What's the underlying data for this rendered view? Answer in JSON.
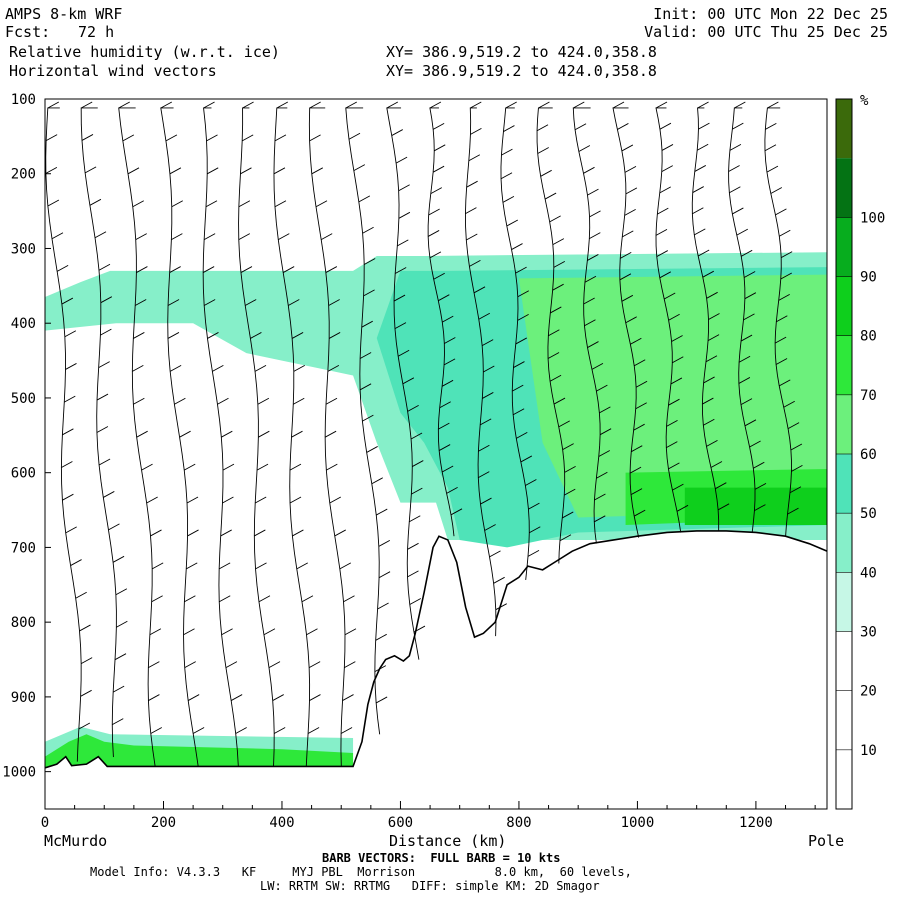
{
  "header": {
    "model": "AMPS 8-km WRF",
    "fcst_label": "Fcst:",
    "fcst_value": "72 h",
    "field1": "Relative humidity (w.r.t. ice)",
    "field2": "Horizontal wind vectors",
    "init": "Init: 00 UTC Mon 22 Dec 25",
    "valid": "Valid: 00 UTC Thu 25 Dec 25",
    "xy1": "XY= 386.9,519.2 to 424.0,358.8",
    "xy2": "XY= 386.9,519.2 to 424.0,358.8"
  },
  "footer": {
    "left_label": "McMurdo",
    "right_label": "Pole",
    "barb_note": "BARB VECTORS:  FULL BARB = 10 kts",
    "model_info": "Model Info: V4.3.3   KF     MYJ PBL  Morrison           8.0 km,  60 levels,",
    "model_info2": "LW: RRTM SW: RRTMG   DIFF: simple KM: 2D Smagor"
  },
  "chart_data": {
    "type": "heatmap",
    "title": "Relative humidity (w.r.t. ice)",
    "xlabel": "Distance (km)",
    "ylabel": "",
    "xlim": [
      0,
      1320
    ],
    "ylim": [
      1050,
      100
    ],
    "x_ticks": [
      0,
      200,
      400,
      600,
      800,
      1000,
      1200
    ],
    "y_ticks": [
      100,
      200,
      300,
      400,
      500,
      600,
      700,
      800,
      900,
      1000
    ],
    "colorbar": {
      "unit": "%",
      "levels": [
        10,
        20,
        30,
        40,
        50,
        60,
        70,
        80,
        90,
        100
      ],
      "colors": [
        "#ffffff",
        "#ffffff",
        "#ffffff",
        "#c6f7e6",
        "#86efc9",
        "#4fe3b8",
        "#6cf07c",
        "#2ee83a",
        "#0ecf1c",
        "#07ad1e",
        "#047314",
        "#3b6a0b"
      ]
    },
    "terrain": [
      [
        0,
        995
      ],
      [
        20,
        990
      ],
      [
        35,
        980
      ],
      [
        45,
        992
      ],
      [
        70,
        990
      ],
      [
        90,
        980
      ],
      [
        105,
        993
      ],
      [
        150,
        993
      ],
      [
        300,
        993
      ],
      [
        450,
        993
      ],
      [
        520,
        993
      ],
      [
        535,
        960
      ],
      [
        545,
        910
      ],
      [
        555,
        880
      ],
      [
        565,
        862
      ],
      [
        575,
        850
      ],
      [
        590,
        845
      ],
      [
        605,
        852
      ],
      [
        615,
        845
      ],
      [
        625,
        815
      ],
      [
        640,
        760
      ],
      [
        655,
        700
      ],
      [
        665,
        685
      ],
      [
        680,
        690
      ],
      [
        695,
        720
      ],
      [
        710,
        780
      ],
      [
        725,
        820
      ],
      [
        740,
        815
      ],
      [
        760,
        800
      ],
      [
        780,
        750
      ],
      [
        800,
        740
      ],
      [
        815,
        725
      ],
      [
        840,
        730
      ],
      [
        860,
        720
      ],
      [
        890,
        705
      ],
      [
        920,
        695
      ],
      [
        960,
        690
      ],
      [
        1000,
        685
      ],
      [
        1050,
        680
      ],
      [
        1100,
        678
      ],
      [
        1150,
        678
      ],
      [
        1200,
        680
      ],
      [
        1250,
        685
      ],
      [
        1290,
        695
      ],
      [
        1320,
        705
      ]
    ],
    "rh_regions": [
      {
        "rh": 35,
        "poly": [
          [
            0,
            365
          ],
          [
            60,
            345
          ],
          [
            110,
            330
          ],
          [
            300,
            330
          ],
          [
            520,
            330
          ],
          [
            560,
            310
          ],
          [
            640,
            310
          ],
          [
            1320,
            305
          ],
          [
            1320,
            690
          ],
          [
            680,
            690
          ],
          [
            660,
            640
          ],
          [
            600,
            640
          ],
          [
            560,
            560
          ],
          [
            520,
            470
          ],
          [
            460,
            460
          ],
          [
            400,
            450
          ],
          [
            340,
            440
          ],
          [
            250,
            400
          ],
          [
            120,
            400
          ],
          [
            0,
            410
          ]
        ]
      },
      {
        "rh": 45,
        "poly": [
          [
            560,
            420
          ],
          [
            600,
            330
          ],
          [
            680,
            330
          ],
          [
            1320,
            325
          ],
          [
            1320,
            670
          ],
          [
            900,
            680
          ],
          [
            780,
            700
          ],
          [
            700,
            690
          ],
          [
            680,
            620
          ],
          [
            640,
            560
          ],
          [
            600,
            520
          ],
          [
            580,
            470
          ]
        ]
      },
      {
        "rh": 55,
        "poly": [
          [
            800,
            340
          ],
          [
            1320,
            335
          ],
          [
            1320,
            650
          ],
          [
            900,
            660
          ],
          [
            840,
            560
          ],
          [
            820,
            450
          ]
        ]
      },
      {
        "rh": 65,
        "poly": [
          [
            980,
            600
          ],
          [
            1320,
            595
          ],
          [
            1320,
            660
          ],
          [
            980,
            670
          ]
        ]
      },
      {
        "rh": 75,
        "poly": [
          [
            1080,
            620
          ],
          [
            1320,
            620
          ],
          [
            1320,
            670
          ],
          [
            1080,
            670
          ]
        ]
      },
      {
        "rh": 35,
        "poly": [
          [
            0,
            960
          ],
          [
            60,
            940
          ],
          [
            110,
            950
          ],
          [
            520,
            955
          ],
          [
            520,
            993
          ],
          [
            0,
            995
          ]
        ]
      },
      {
        "rh": 65,
        "poly": [
          [
            0,
            980
          ],
          [
            40,
            960
          ],
          [
            70,
            950
          ],
          [
            100,
            960
          ],
          [
            150,
            965
          ],
          [
            400,
            970
          ],
          [
            520,
            975
          ],
          [
            520,
            993
          ],
          [
            0,
            995
          ]
        ]
      }
    ]
  }
}
